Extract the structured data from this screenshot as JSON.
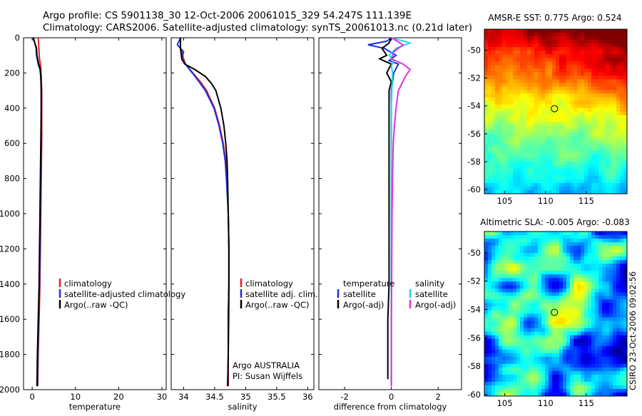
{
  "header": {
    "line1": "Argo profile: CS 5901138_30 12-Oct-2006 20061015_329 54.247S 111.139E",
    "line2": "Climatology: CARS2006. Satellite-adjusted climatology: synTS_20061013.nc (0.21d later)"
  },
  "side_stamp": "CSIRO 23-Oct-2006 09:02:56",
  "colors": {
    "climatology": "#e02020",
    "satellite": "#1a2ee0",
    "argo": "#000000",
    "sat_salinity": "#22d8e6",
    "argo_salinity": "#e030e0"
  },
  "chart_data": [
    {
      "type": "line",
      "title": "",
      "xlabel": "temperature",
      "ylabel": "",
      "xlim": [
        -2,
        31
      ],
      "ylim": [
        2000,
        0
      ],
      "xticks": [
        0,
        10,
        20,
        30
      ],
      "yticks": [
        0,
        200,
        400,
        600,
        800,
        1000,
        1200,
        1400,
        1600,
        1800,
        2000
      ],
      "legend": {
        "position": "lower-right",
        "entries": [
          "climatology",
          "satellite-adjusted climatology",
          "Argo(..raw -QC)"
        ]
      },
      "series": [
        {
          "name": "climatology",
          "depth": [
            0,
            40,
            80,
            120,
            150,
            180,
            220,
            300,
            400,
            600,
            800,
            1000,
            1200,
            1400,
            1600,
            1800,
            1980
          ],
          "values": [
            1.4,
            1.5,
            1.6,
            1.7,
            1.9,
            2.0,
            2.1,
            2.2,
            2.2,
            2.2,
            2.1,
            2.0,
            1.9,
            1.8,
            1.6,
            1.4,
            1.3
          ]
        },
        {
          "name": "satellite-adjusted climatology",
          "depth": [
            0,
            30,
            60,
            100,
            150,
            180,
            220,
            300,
            400,
            600,
            800,
            1000,
            1200,
            1400,
            1600,
            1800,
            1980
          ],
          "values": [
            0.2,
            0.6,
            0.9,
            1.0,
            1.4,
            1.8,
            2.0,
            2.1,
            2.1,
            2.1,
            2.0,
            1.9,
            1.8,
            1.7,
            1.5,
            1.3,
            1.2
          ]
        },
        {
          "name": "Argo(..raw -QC)",
          "depth": [
            0,
            30,
            60,
            100,
            150,
            180,
            220,
            300,
            400,
            600,
            800,
            1000,
            1200,
            1400,
            1600,
            1800,
            1980
          ],
          "values": [
            0.3,
            0.6,
            1.0,
            1.1,
            1.5,
            1.9,
            2.0,
            2.1,
            2.1,
            2.0,
            1.9,
            1.8,
            1.7,
            1.6,
            1.4,
            1.2,
            1.1
          ]
        }
      ]
    },
    {
      "type": "line",
      "title": "",
      "xlabel": "salinity",
      "ylabel": "",
      "xlim": [
        33.8,
        36.1
      ],
      "ylim": [
        2000,
        0
      ],
      "xticks": [
        34,
        34.5,
        35,
        35.5,
        36
      ],
      "yticks": [
        0,
        200,
        400,
        600,
        800,
        1000,
        1200,
        1400,
        1600,
        1800,
        2000
      ],
      "legend": {
        "position": "lower-right",
        "entries": [
          "climatology",
          "satellite adj. clim.",
          "Argo(..raw -QC)"
        ]
      },
      "annotations": [
        "Argo AUSTRALIA",
        "PI: Susan Wijffels"
      ],
      "series": [
        {
          "name": "climatology",
          "depth": [
            0,
            60,
            120,
            150,
            200,
            250,
            300,
            400,
            500,
            600,
            700,
            800,
            1000,
            1200,
            1400,
            1600,
            1800,
            1980
          ],
          "values": [
            33.95,
            33.95,
            34.0,
            34.03,
            34.15,
            34.27,
            34.37,
            34.5,
            34.58,
            34.64,
            34.68,
            34.7,
            34.72,
            34.73,
            34.73,
            34.73,
            34.72,
            34.72
          ]
        },
        {
          "name": "satellite adj. clim.",
          "depth": [
            0,
            40,
            80,
            120,
            150,
            200,
            250,
            300,
            400,
            500,
            600,
            700,
            800,
            1000,
            1200,
            1400,
            1600,
            1800,
            1980
          ],
          "values": [
            33.95,
            33.9,
            34.0,
            33.97,
            34.03,
            34.14,
            34.25,
            34.35,
            34.49,
            34.57,
            34.63,
            34.67,
            34.69,
            34.72,
            34.73,
            34.73,
            34.72,
            34.72,
            34.71
          ]
        },
        {
          "name": "Argo(..raw -QC)",
          "depth": [
            0,
            60,
            120,
            150,
            180,
            220,
            260,
            300,
            400,
            500,
            600,
            700,
            800,
            1000,
            1200,
            1400,
            1600,
            1800,
            1980
          ],
          "values": [
            33.95,
            33.95,
            33.97,
            34.02,
            34.18,
            34.35,
            34.45,
            34.52,
            34.6,
            34.65,
            34.68,
            34.7,
            34.71,
            34.72,
            34.73,
            34.73,
            34.72,
            34.72,
            34.71
          ]
        }
      ]
    },
    {
      "type": "line",
      "title": "",
      "xlabel": "difference from climatology",
      "ylabel": "",
      "xlim": [
        -3.1,
        3.0
      ],
      "ylim": [
        2000,
        0
      ],
      "xticks": [
        -2,
        0,
        2
      ],
      "yticks": [
        0,
        200,
        400,
        600,
        800,
        1000,
        1200,
        1400,
        1600,
        1800,
        2000
      ],
      "legend": {
        "position": "lower-center",
        "headers": [
          "temperature",
          "salinity"
        ],
        "entries": [
          "satellite",
          "Argo(-adj)",
          "satellite",
          "Argo(-adj)"
        ]
      },
      "series": [
        {
          "name": "temperature satellite",
          "depth": [
            0,
            20,
            40,
            60,
            100,
            130,
            150,
            200,
            300,
            400,
            600,
            800,
            1000,
            1200,
            1400,
            1600,
            1800,
            1980
          ],
          "values": [
            0.0,
            -0.2,
            -1.0,
            -0.3,
            0.2,
            -0.1,
            0.3,
            0.1,
            0.0,
            0.0,
            0.0,
            0.0,
            0.0,
            0.0,
            0.0,
            0.0,
            0.0,
            0.0
          ]
        },
        {
          "name": "temperature Argo(-adj)",
          "depth": [
            0,
            30,
            60,
            100,
            120,
            150,
            200,
            250,
            300,
            400,
            600,
            800,
            1000,
            1200,
            1400,
            1600,
            1800,
            1940
          ],
          "values": [
            0.0,
            -0.1,
            -0.4,
            -0.2,
            -0.5,
            0.0,
            -0.2,
            0.0,
            -0.1,
            -0.1,
            -0.1,
            -0.1,
            -0.1,
            -0.1,
            -0.1,
            -0.15,
            -0.15,
            -0.15
          ]
        },
        {
          "name": "salinity satellite",
          "depth": [
            0,
            30,
            60,
            100,
            130,
            160,
            200,
            300,
            400,
            600,
            800,
            1000,
            1200,
            1400,
            1600,
            1800,
            1980
          ],
          "values": [
            0.0,
            0.8,
            0.2,
            -0.1,
            0.1,
            0.0,
            0.05,
            0.02,
            0.0,
            0.0,
            0.0,
            0.0,
            0.0,
            0.0,
            0.0,
            0.0,
            0.0
          ]
        },
        {
          "name": "salinity Argo(-adj)",
          "depth": [
            0,
            40,
            80,
            120,
            150,
            180,
            220,
            260,
            300,
            400,
            500,
            600,
            800,
            1000,
            1200,
            1400,
            1600,
            1800,
            1980
          ],
          "values": [
            0.0,
            0.5,
            0.1,
            0.0,
            0.5,
            0.8,
            0.6,
            0.45,
            0.3,
            0.2,
            0.13,
            0.08,
            0.05,
            0.03,
            0.02,
            0.01,
            0.0,
            0.0,
            0.0
          ]
        }
      ]
    },
    {
      "type": "heatmap",
      "title": "AMSR-E SST: 0.775 Argo: 0.524",
      "xlim": [
        102.5,
        120
      ],
      "ylim": [
        -60.3,
        -48.5
      ],
      "xticks": [
        105,
        110,
        115
      ],
      "yticks": [
        -50,
        -52,
        -54,
        -56,
        -58,
        -60
      ],
      "marker": {
        "lon": 111.1,
        "lat": -54.2
      }
    },
    {
      "type": "heatmap",
      "title": "Altimetric SLA: -0.005 Argo: -0.083",
      "xlim": [
        102.5,
        120
      ],
      "ylim": [
        -60.1,
        -48.5
      ],
      "xticks": [
        105,
        110,
        115
      ],
      "yticks": [
        -50,
        -52,
        -54,
        -56,
        -58,
        -60
      ],
      "marker": {
        "lon": 111.1,
        "lat": -54.2
      }
    }
  ]
}
